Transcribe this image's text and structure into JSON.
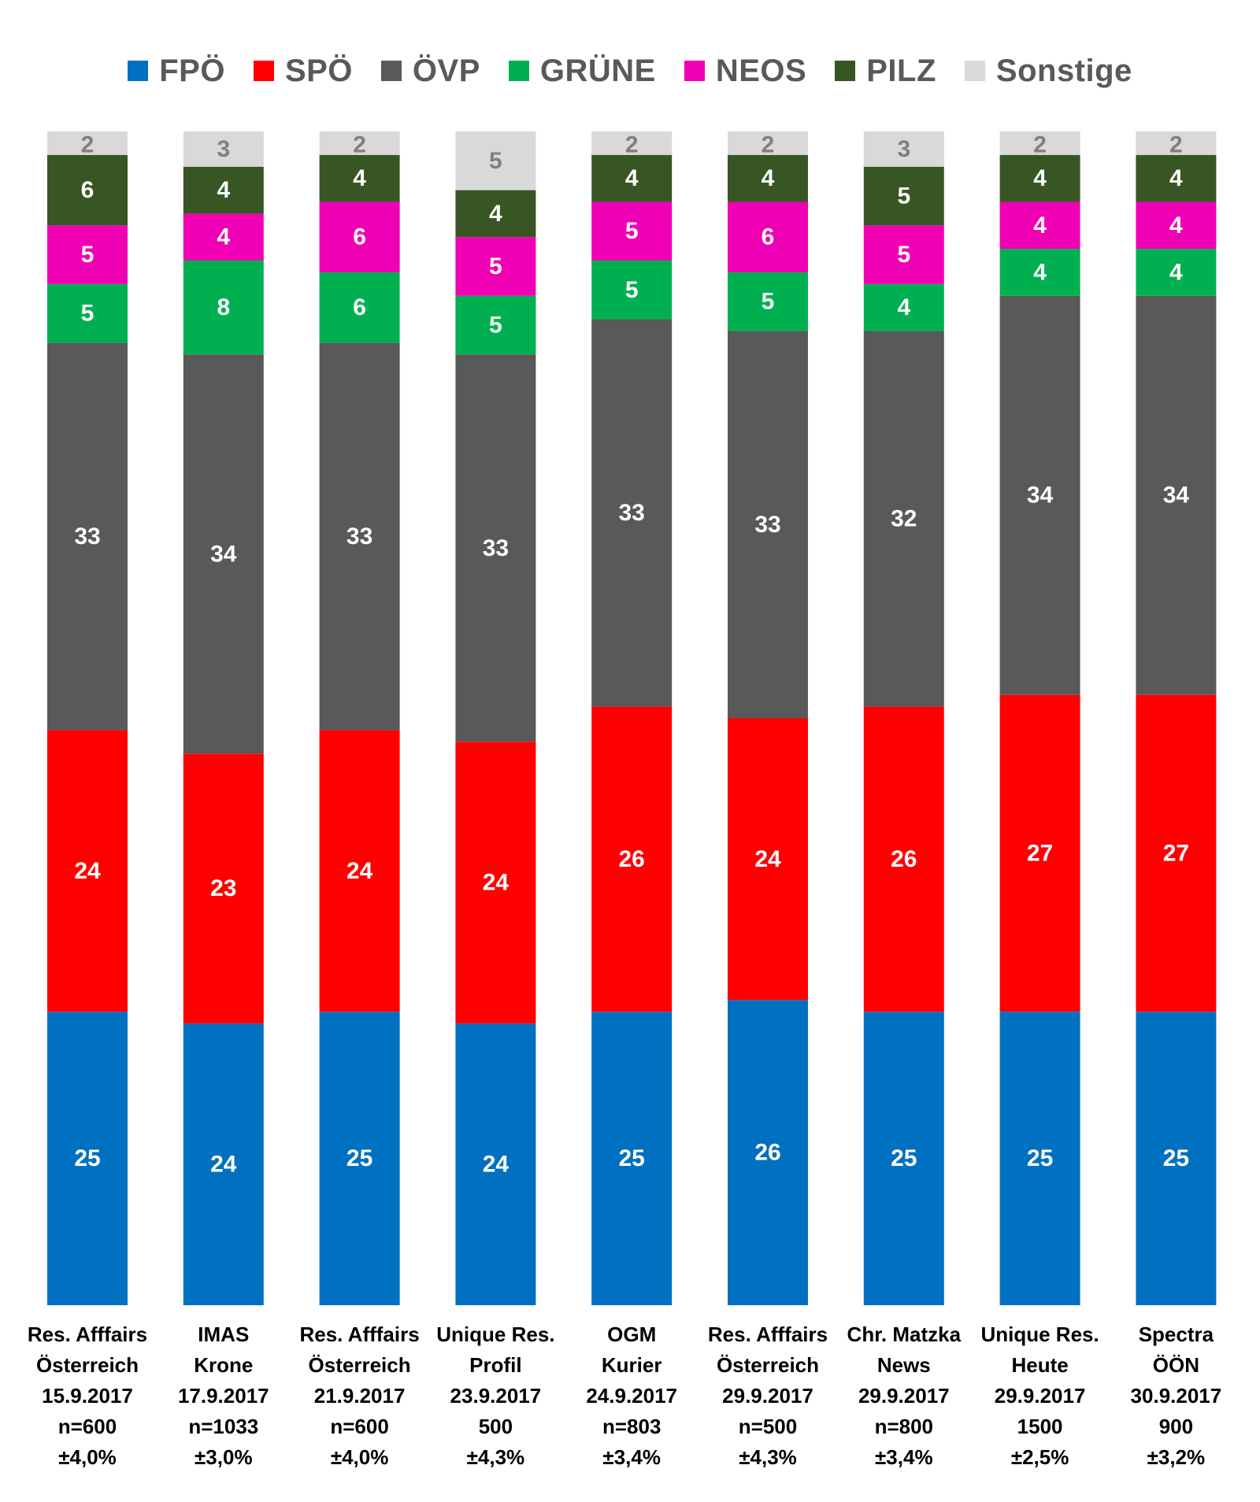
{
  "chart_data": {
    "type": "bar",
    "stacked": true,
    "title": "",
    "xlabel": "",
    "ylabel": "",
    "ylim": [
      0,
      100
    ],
    "grid": false,
    "legend_position": "top",
    "categories": [
      [
        "Res. Afffairs",
        "Österreich",
        "15.9.2017",
        "n=600",
        "±4,0%"
      ],
      [
        "IMAS",
        "Krone",
        "17.9.2017",
        "n=1033",
        "±3,0%"
      ],
      [
        "Res. Afffairs",
        "Österreich",
        "21.9.2017",
        "n=600",
        "±4,0%"
      ],
      [
        "Unique Res.",
        "Profil",
        "23.9.2017",
        "500",
        "±4,3%"
      ],
      [
        "OGM",
        "Kurier",
        "24.9.2017",
        "n=803",
        "±3,4%"
      ],
      [
        "Res. Afffairs",
        "Österreich",
        "29.9.2017",
        "n=500",
        "±4,3%"
      ],
      [
        "Chr. Matzka",
        "News",
        "29.9.2017",
        "n=800",
        "±3,4%"
      ],
      [
        "Unique Res.",
        "Heute",
        "29.9.2017",
        "1500",
        "±2,5%"
      ],
      [
        "Spectra",
        "ÖÖN",
        "30.9.2017",
        "900",
        "±3,2%"
      ]
    ],
    "series": [
      {
        "name": "FPÖ",
        "color": "#0070C0",
        "label_color": "#FFFFFF",
        "values": [
          25,
          24,
          25,
          24,
          25,
          26,
          25,
          25,
          25
        ]
      },
      {
        "name": "SPÖ",
        "color": "#FF0000",
        "label_color": "#FFFFFF",
        "values": [
          24,
          23,
          24,
          24,
          26,
          24,
          26,
          27,
          27
        ]
      },
      {
        "name": "ÖVP",
        "color": "#595959",
        "label_color": "#FFFFFF",
        "values": [
          33,
          34,
          33,
          33,
          33,
          33,
          32,
          34,
          34
        ]
      },
      {
        "name": "GRÜNE",
        "color": "#00B050",
        "label_color": "#FFFFFF",
        "values": [
          5,
          8,
          6,
          5,
          5,
          5,
          4,
          4,
          4
        ]
      },
      {
        "name": "NEOS",
        "color": "#F000B4",
        "label_color": "#FFFFFF",
        "values": [
          5,
          4,
          6,
          5,
          5,
          6,
          5,
          4,
          4
        ]
      },
      {
        "name": "PILZ",
        "color": "#375623",
        "label_color": "#FFFFFF",
        "values": [
          6,
          4,
          4,
          4,
          4,
          4,
          5,
          4,
          4
        ]
      },
      {
        "name": "Sonstige",
        "color": "#D9D9D9",
        "label_color": "#808080",
        "values": [
          2,
          3,
          2,
          5,
          2,
          2,
          3,
          2,
          2
        ]
      }
    ]
  }
}
